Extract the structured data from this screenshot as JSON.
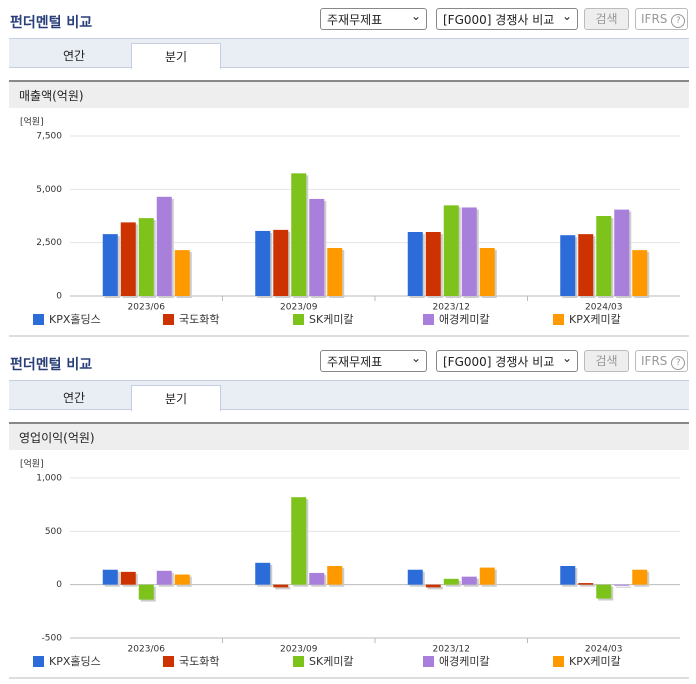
{
  "panels": [
    {
      "title": "펀더멘털 비교",
      "select_statement": "주재무제표",
      "select_compare": "[FG000] 경쟁사 비교",
      "button": "검색",
      "ifrs": "IFRS",
      "tabs": [
        "연간",
        "분기"
      ]
    },
    {
      "title": "펀더멘털 비교",
      "select_statement": "주재무제표",
      "select_compare": "[FG000] 경쟁사 비교",
      "button": "검색",
      "ifrs": "IFRS",
      "tabs": [
        "연간",
        "분기"
      ]
    }
  ],
  "chart_data": [
    {
      "type": "bar",
      "title": "매출액(억원)",
      "unit": "[억원]",
      "categories": [
        "2023/06",
        "2023/09",
        "2023/12",
        "2024/03"
      ],
      "series": [
        {
          "name": "KPX홀딩스",
          "color": "#2b6cd8",
          "values": [
            2900,
            3050,
            3000,
            2850
          ]
        },
        {
          "name": "국도화학",
          "color": "#cc3300",
          "values": [
            3450,
            3100,
            3000,
            2900
          ]
        },
        {
          "name": "SK케미칼",
          "color": "#7dc31b",
          "values": [
            3650,
            5750,
            4250,
            3750
          ]
        },
        {
          "name": "애경케미칼",
          "color": "#a97fdc",
          "values": [
            4650,
            4550,
            4150,
            4050
          ]
        },
        {
          "name": "KPX케미칼",
          "color": "#ff9900",
          "values": [
            2150,
            2250,
            2250,
            2150
          ]
        }
      ],
      "ylim": [
        0,
        7500
      ],
      "yticks": [
        0,
        {
          "value": 2500,
          "label": "2,500"
        },
        {
          "value": 5000,
          "label": "5,000"
        },
        {
          "value": 7500,
          "label": "7,500"
        }
      ],
      "grid": true
    },
    {
      "type": "bar",
      "title": "영업이익(억원)",
      "unit": "[억원]",
      "categories": [
        "2023/06",
        "2023/09",
        "2023/12",
        "2024/03"
      ],
      "series": [
        {
          "name": "KPX홀딩스",
          "color": "#2b6cd8",
          "values": [
            140,
            205,
            140,
            175
          ]
        },
        {
          "name": "국도화학",
          "color": "#cc3300",
          "values": [
            120,
            -25,
            -25,
            15
          ]
        },
        {
          "name": "SK케미칼",
          "color": "#7dc31b",
          "values": [
            -140,
            820,
            55,
            -130
          ]
        },
        {
          "name": "애경케미칼",
          "color": "#a97fdc",
          "values": [
            130,
            110,
            75,
            -10
          ]
        },
        {
          "name": "KPX케미칼",
          "color": "#ff9900",
          "values": [
            95,
            175,
            160,
            140
          ]
        }
      ],
      "ylim": [
        -500,
        1000
      ],
      "yticks": [
        -500,
        0,
        500,
        {
          "value": 1000,
          "label": "1,000"
        }
      ],
      "grid": true
    }
  ]
}
